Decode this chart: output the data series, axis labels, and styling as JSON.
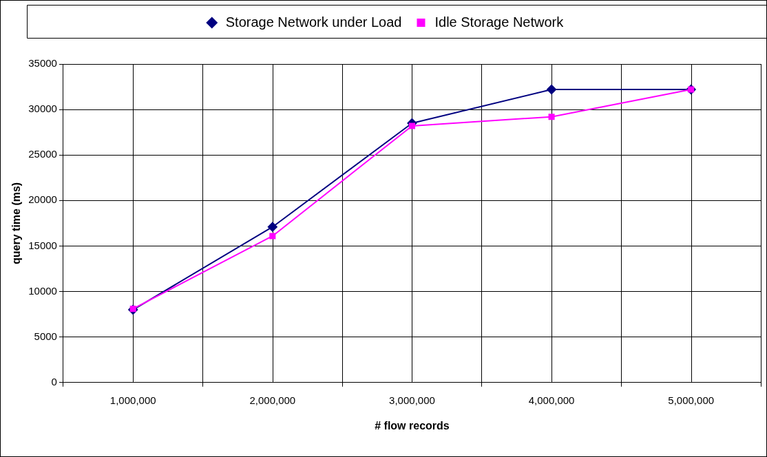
{
  "chart_data": {
    "type": "line",
    "xlabel": "# flow records",
    "ylabel": "query time (ms)",
    "categories": [
      "1,000,000",
      "2,000,000",
      "3,000,000",
      "4,000,000",
      "5,000,000"
    ],
    "series": [
      {
        "name": "Storage Network under Load",
        "color": "#000080",
        "marker": "diamond",
        "values": [
          8000,
          17100,
          28500,
          32200,
          32200
        ]
      },
      {
        "name": "Idle Storage Network",
        "color": "#ff00ff",
        "marker": "square",
        "values": [
          8100,
          16100,
          28200,
          29200,
          32200
        ]
      }
    ],
    "ylim": [
      0,
      35000
    ],
    "yticks": [
      0,
      5000,
      10000,
      15000,
      20000,
      25000,
      30000,
      35000
    ],
    "grid": true,
    "legend": "top",
    "line_style": "solid"
  }
}
